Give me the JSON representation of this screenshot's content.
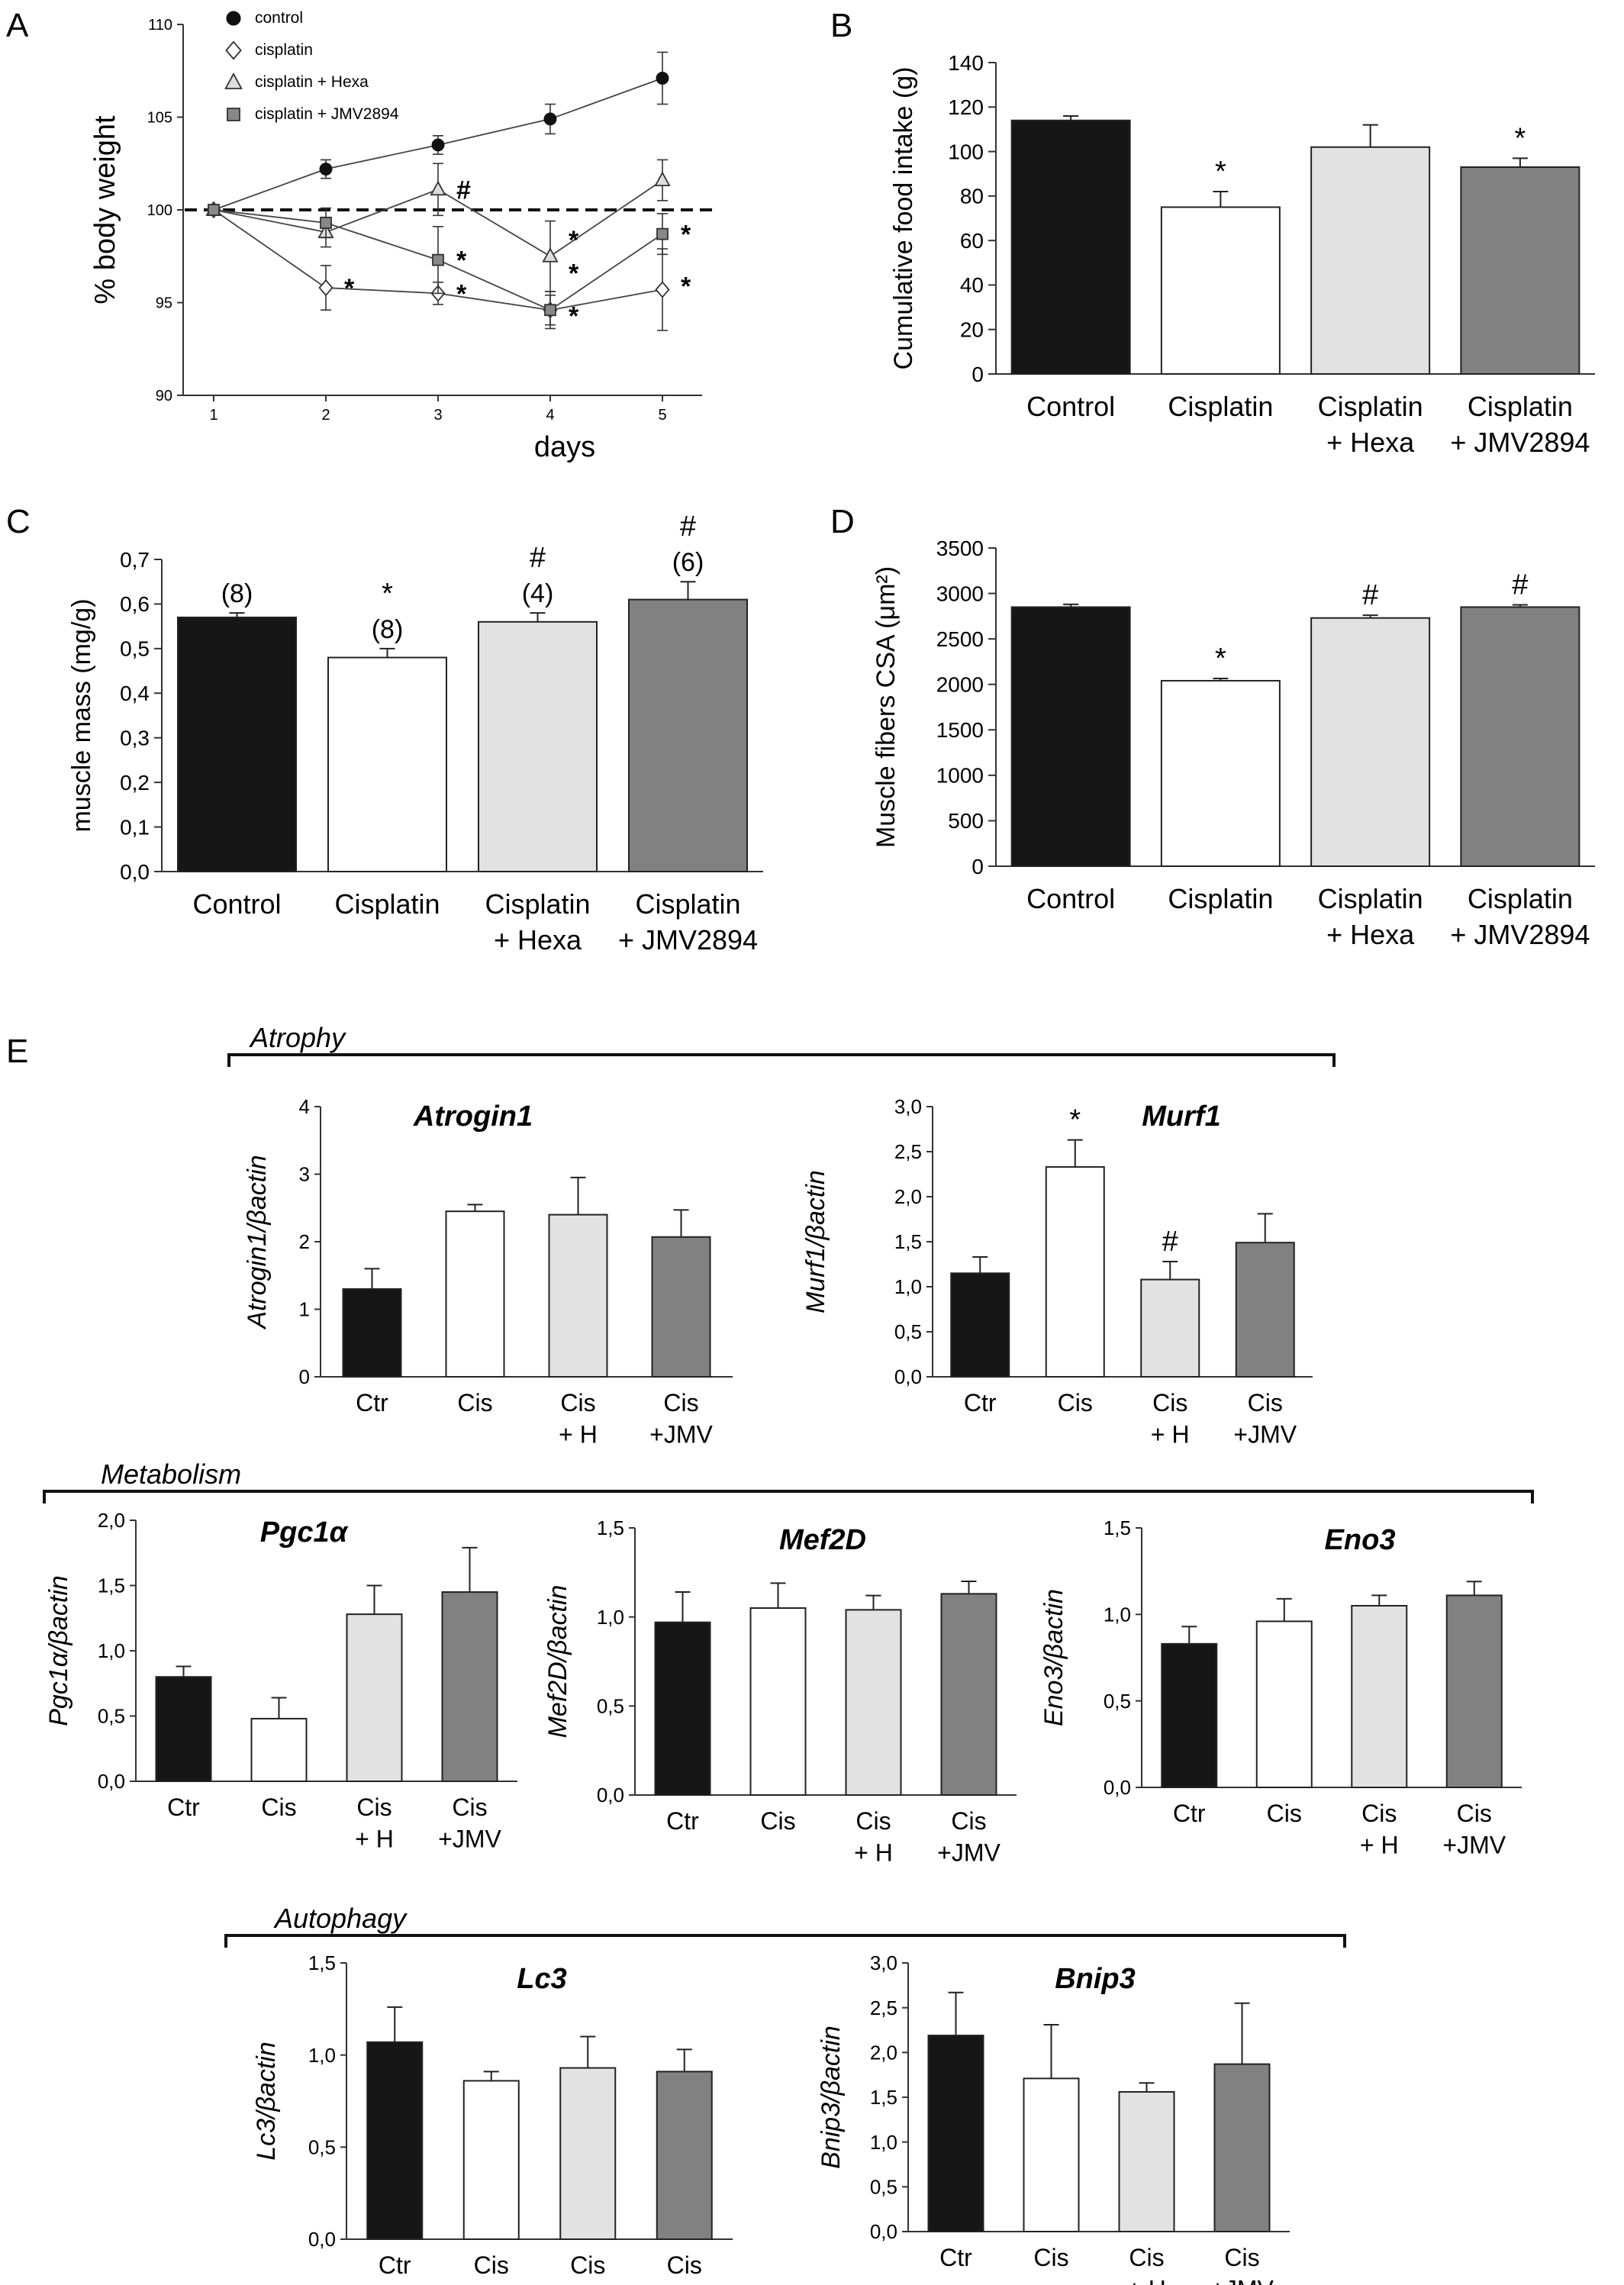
{
  "panel_letters": {
    "A": "A",
    "B": "B",
    "C": "C",
    "D": "D",
    "E": "E"
  },
  "groups": {
    "full": [
      "Control",
      "Cisplatin",
      "Cisplatin\n+ Hexa",
      "Cisplatin\n+ JMV2894"
    ],
    "short": [
      "Ctr",
      "Cis",
      "Cis\n+ H",
      "Cis\n+JMV"
    ]
  },
  "colors": {
    "control": "#161616",
    "cisplatin": "#ffffff",
    "hexa": "#e2e2e2",
    "jmv": "#818181",
    "axis": "#333333"
  },
  "sections": {
    "atrophy": "Atrophy",
    "metabolism": "Metabolism",
    "autophagy": "Autophagy"
  },
  "chart_data": [
    {
      "id": "A",
      "type": "line",
      "xlabel": "days",
      "ylabel": "% body weight",
      "x": [
        1,
        2,
        3,
        4,
        5
      ],
      "xticks": [
        "1",
        "2",
        "3",
        "4",
        "5"
      ],
      "ylim": [
        90,
        110
      ],
      "yticks": [
        "90",
        "95",
        "100",
        "105",
        "110"
      ],
      "reference_line": 100,
      "legend": {
        "placement": "top-left",
        "entries": [
          "control",
          "cisplatin",
          "cisplatin + Hexa",
          "cisplatin + JMV2894"
        ]
      },
      "series": [
        {
          "name": "control",
          "marker": "circle",
          "values": [
            100,
            102.2,
            103.5,
            104.9,
            107.1
          ],
          "err": [
            0,
            0.5,
            0.5,
            0.8,
            1.4
          ]
        },
        {
          "name": "cisplatin",
          "marker": "diamond",
          "values": [
            100,
            95.8,
            95.5,
            94.6,
            95.7
          ],
          "err": [
            0,
            1.2,
            0.6,
            0.8,
            2.2
          ]
        },
        {
          "name": "cisplatin + Hexa",
          "marker": "triangle",
          "values": [
            100,
            98.8,
            101.1,
            97.5,
            101.6
          ],
          "err": [
            0,
            0.8,
            1.4,
            1.9,
            1.1
          ]
        },
        {
          "name": "cisplatin + JMV2894",
          "marker": "square",
          "values": [
            100,
            99.3,
            97.3,
            94.6,
            98.7
          ],
          "err": [
            0,
            0.8,
            1.8,
            1.0,
            1.1
          ]
        }
      ],
      "annotations": [
        {
          "text": "#",
          "x": 3,
          "y": 101.1
        },
        {
          "text": "*",
          "x": 2,
          "y": 95.8
        },
        {
          "text": "*",
          "x": 3,
          "y": 97.3
        },
        {
          "text": "*",
          "x": 3,
          "y": 95.5
        },
        {
          "text": "*",
          "x": 4,
          "y": 98.4
        },
        {
          "text": "*",
          "x": 4,
          "y": 96.6
        },
        {
          "text": "*",
          "x": 4,
          "y": 94.3
        },
        {
          "text": "*",
          "x": 5,
          "y": 98.7
        },
        {
          "text": "*",
          "x": 5,
          "y": 95.9
        }
      ]
    },
    {
      "id": "B",
      "type": "bar",
      "ylabel": "Cumulative food intake (g)",
      "categories": [
        "Control",
        "Cisplatin",
        "Cisplatin + Hexa",
        "Cisplatin + JMV2894"
      ],
      "values": [
        114,
        75,
        102,
        93
      ],
      "err": [
        2,
        7,
        10,
        4
      ],
      "ylim": [
        0,
        140
      ],
      "yticks": [
        "0",
        "20",
        "40",
        "60",
        "80",
        "100",
        "120",
        "140"
      ],
      "labels": [
        [],
        [
          "*"
        ],
        [],
        [
          "*"
        ]
      ]
    },
    {
      "id": "C",
      "type": "bar",
      "ylabel": "muscle mass (mg/g)",
      "categories": [
        "Control",
        "Cisplatin",
        "Cisplatin + Hexa",
        "Cisplatin + JMV2894"
      ],
      "values": [
        0.57,
        0.48,
        0.56,
        0.61
      ],
      "err": [
        0.01,
        0.02,
        0.02,
        0.04
      ],
      "ylim": [
        0,
        0.7
      ],
      "yticks": [
        "0,0",
        "0,1",
        "0,2",
        "0,3",
        "0,4",
        "0,5",
        "0,6",
        "0,7"
      ],
      "labels": [
        [
          "(8)"
        ],
        [
          "(8)",
          "*"
        ],
        [
          "(4)",
          "#"
        ],
        [
          "(6)",
          "#"
        ]
      ]
    },
    {
      "id": "D",
      "type": "bar",
      "ylabel": "Muscle fibers CSA (μm²)",
      "categories": [
        "Control",
        "Cisplatin",
        "Cisplatin + Hexa",
        "Cisplatin + JMV2894"
      ],
      "values": [
        2850,
        2040,
        2730,
        2850
      ],
      "err": [
        30,
        25,
        30,
        25
      ],
      "ylim": [
        0,
        3500
      ],
      "yticks": [
        "0",
        "500",
        "1000",
        "1500",
        "2000",
        "2500",
        "3000",
        "3500"
      ],
      "labels": [
        [],
        [
          "*"
        ],
        [
          "#"
        ],
        [
          "#"
        ]
      ]
    },
    {
      "id": "E-Atrogin1",
      "type": "bar",
      "title": "Atrogin1",
      "ylabel": "Atrogin1/βactin",
      "categories": [
        "Ctr",
        "Cis",
        "Cis + H",
        "Cis +JMV"
      ],
      "values": [
        1.3,
        2.45,
        2.4,
        2.07
      ],
      "err": [
        0.3,
        0.1,
        0.55,
        0.4
      ],
      "ylim": [
        0,
        4
      ],
      "yticks": [
        "0",
        "1",
        "2",
        "3",
        "4"
      ],
      "labels": [
        [],
        [],
        [],
        []
      ]
    },
    {
      "id": "E-Murf1",
      "type": "bar",
      "title": "Murf1",
      "ylabel": "Murf1/βactin",
      "categories": [
        "Ctr",
        "Cis",
        "Cis + H",
        "Cis +JMV"
      ],
      "values": [
        1.15,
        2.33,
        1.08,
        1.49
      ],
      "err": [
        0.18,
        0.3,
        0.2,
        0.32
      ],
      "ylim": [
        0,
        3
      ],
      "yticks": [
        "0,0",
        "0,5",
        "1,0",
        "1,5",
        "2,0",
        "2,5",
        "3,0"
      ],
      "labels": [
        [],
        [
          "*"
        ],
        [
          "#"
        ],
        []
      ]
    },
    {
      "id": "E-Pgc1a",
      "type": "bar",
      "title": "Pgc1α",
      "ylabel": "Pgc1α/βactin",
      "categories": [
        "Ctr",
        "Cis",
        "Cis + H",
        "Cis +JMV"
      ],
      "values": [
        0.8,
        0.48,
        1.28,
        1.45
      ],
      "err": [
        0.08,
        0.16,
        0.22,
        0.34
      ],
      "ylim": [
        0,
        2
      ],
      "yticks": [
        "0,0",
        "0,5",
        "1,0",
        "1,5",
        "2,0"
      ],
      "labels": [
        [],
        [],
        [],
        []
      ]
    },
    {
      "id": "E-Mef2D",
      "type": "bar",
      "title": "Mef2D",
      "ylabel": "Mef2D/βactin",
      "categories": [
        "Ctr",
        "Cis",
        "Cis + H",
        "Cis +JMV"
      ],
      "values": [
        0.97,
        1.05,
        1.04,
        1.13
      ],
      "err": [
        0.17,
        0.14,
        0.08,
        0.07
      ],
      "ylim": [
        0,
        1.5
      ],
      "yticks": [
        "0,0",
        "0,5",
        "1,0",
        "1,5"
      ],
      "labels": [
        [],
        [],
        [],
        []
      ]
    },
    {
      "id": "E-Eno3",
      "type": "bar",
      "title": "Eno3",
      "ylabel": "Eno3/βactin",
      "categories": [
        "Ctr",
        "Cis",
        "Cis + H",
        "Cis +JMV"
      ],
      "values": [
        0.83,
        0.96,
        1.05,
        1.11
      ],
      "err": [
        0.1,
        0.13,
        0.06,
        0.08
      ],
      "ylim": [
        0,
        1.5
      ],
      "yticks": [
        "0,0",
        "0,5",
        "1,0",
        "1,5"
      ],
      "labels": [
        [],
        [],
        [],
        []
      ]
    },
    {
      "id": "E-Lc3",
      "type": "bar",
      "title": "Lc3",
      "ylabel": "Lc3/βactin",
      "categories": [
        "Ctr",
        "Cis",
        "Cis + H",
        "Cis +JMV"
      ],
      "values": [
        1.07,
        0.86,
        0.93,
        0.91
      ],
      "err": [
        0.19,
        0.05,
        0.17,
        0.12
      ],
      "ylim": [
        0,
        1.5
      ],
      "yticks": [
        "0,0",
        "0,5",
        "1,0",
        "1,5"
      ],
      "labels": [
        [],
        [],
        [],
        []
      ]
    },
    {
      "id": "E-Bnip3",
      "type": "bar",
      "title": "Bnip3",
      "ylabel": "Bnip3/βactin",
      "categories": [
        "Ctr",
        "Cis",
        "Cis + H",
        "Cis +JMV"
      ],
      "values": [
        2.19,
        1.71,
        1.56,
        1.87
      ],
      "err": [
        0.48,
        0.6,
        0.1,
        0.68
      ],
      "ylim": [
        0,
        3
      ],
      "yticks": [
        "0,0",
        "0,5",
        "1,0",
        "1,5",
        "2,0",
        "2,5",
        "3,0"
      ],
      "labels": [
        [],
        [],
        [],
        []
      ]
    }
  ]
}
